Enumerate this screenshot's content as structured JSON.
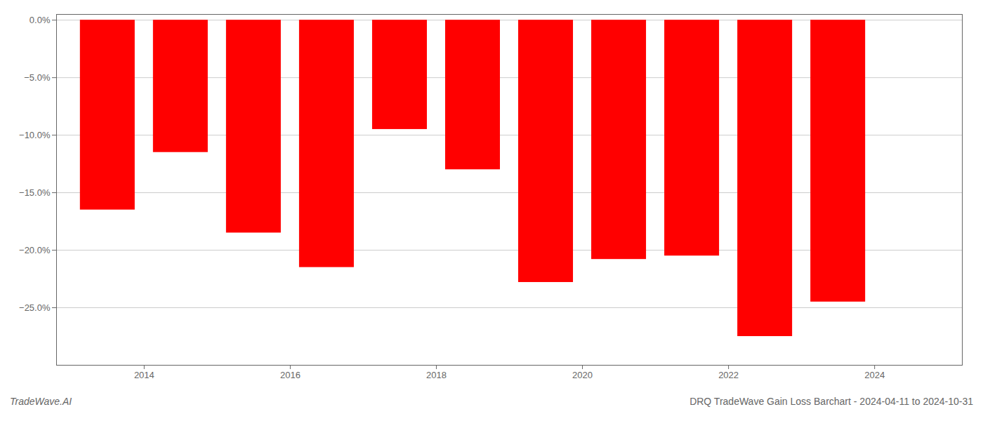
{
  "chart_data": {
    "type": "bar",
    "x": [
      2013.5,
      2014.5,
      2015.5,
      2016.5,
      2017.5,
      2018.5,
      2019.5,
      2020.5,
      2021.5,
      2022.5,
      2023.5
    ],
    "values": [
      -0.165,
      -0.115,
      -0.185,
      -0.215,
      -0.095,
      -0.13,
      -0.228,
      -0.208,
      -0.205,
      -0.275,
      -0.245
    ],
    "color": "#ff0000",
    "xlim": [
      2012.8,
      2025.2
    ],
    "xticks": [
      2014,
      2016,
      2018,
      2020,
      2022,
      2024
    ],
    "ylim": [
      -0.3,
      0.005
    ],
    "yticks": [
      {
        "value": 0.0,
        "label": "0.0%"
      },
      {
        "value": -0.05,
        "label": "−5.0%"
      },
      {
        "value": -0.1,
        "label": "−10.0%"
      },
      {
        "value": -0.15,
        "label": "−15.0%"
      },
      {
        "value": -0.2,
        "label": "−20.0%"
      },
      {
        "value": -0.25,
        "label": "−25.0%"
      }
    ],
    "grid": true,
    "annotations": [
      "TradeWave.AI",
      "DRQ TradeWave Gain Loss Barchart - 2024-04-11 to 2024-10-31"
    ]
  }
}
